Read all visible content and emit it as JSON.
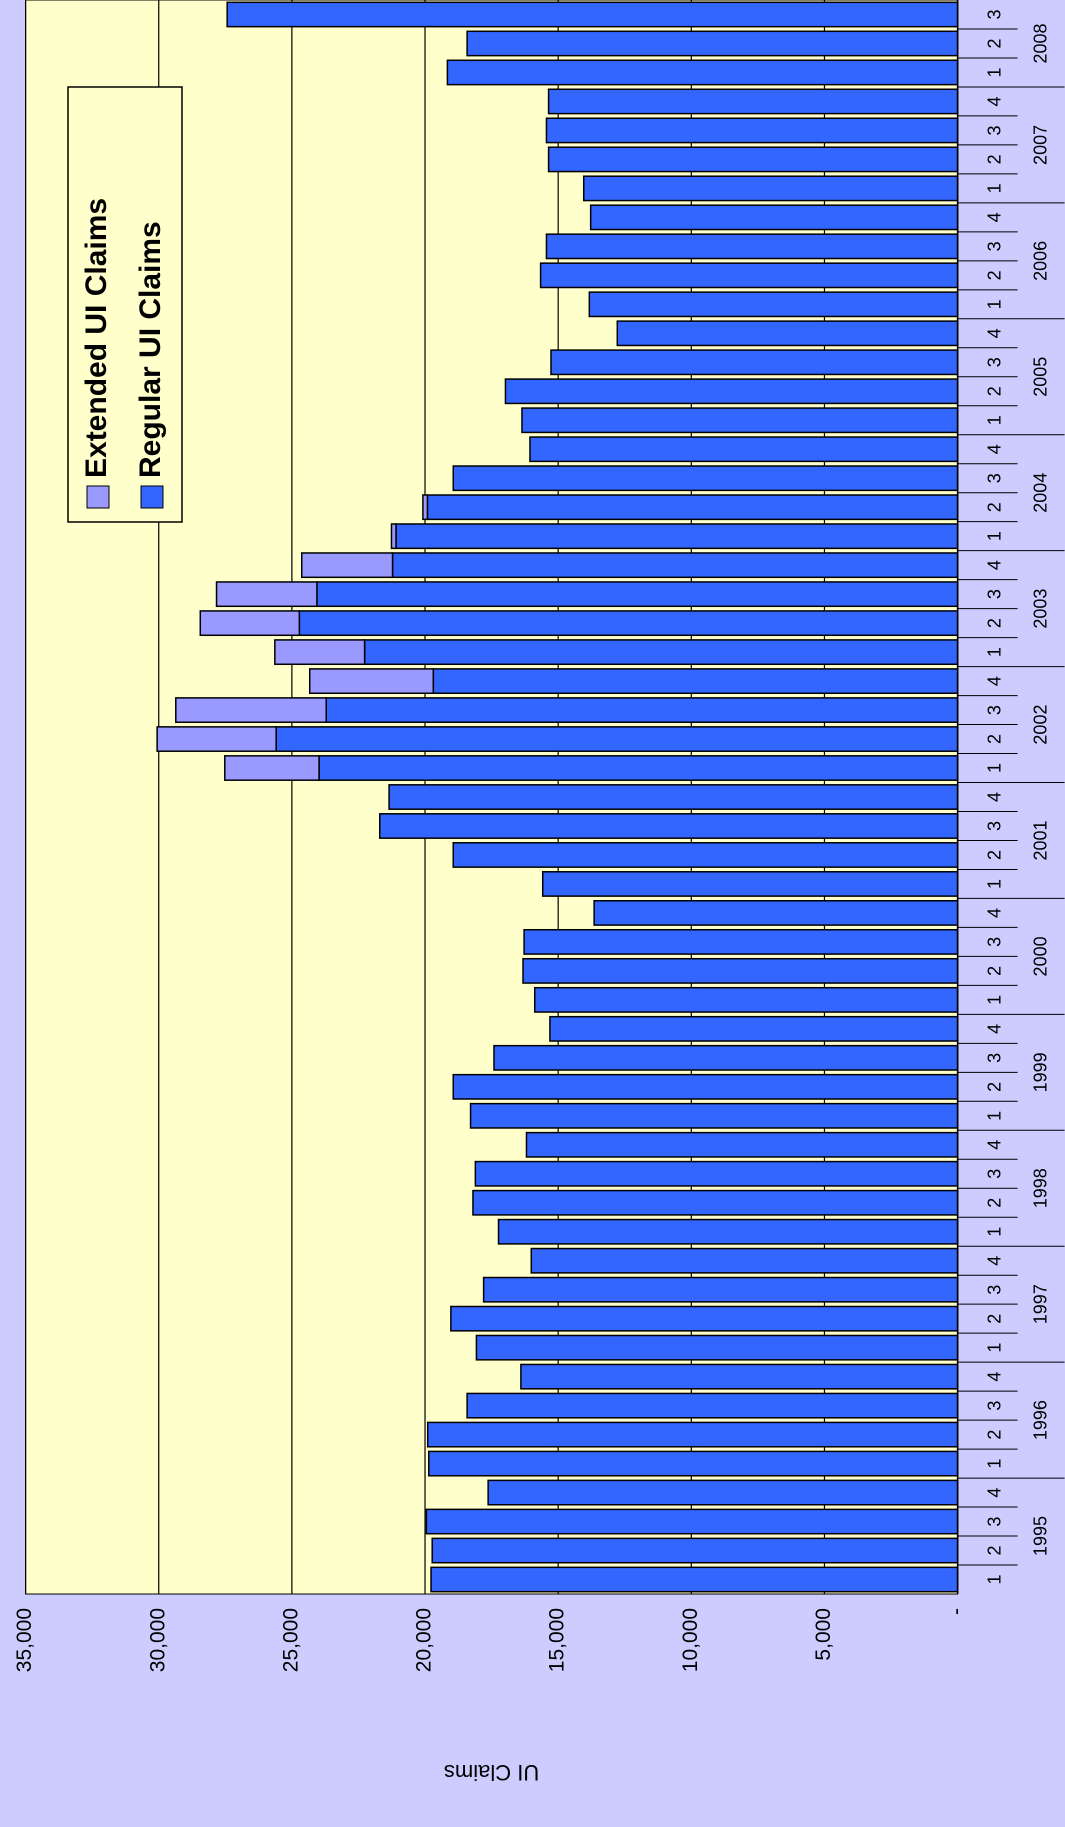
{
  "chart_data": {
    "type": "bar",
    "stacked": true,
    "y_label": "UI Claims",
    "categories": [
      "1",
      "2",
      "3",
      "4",
      "1",
      "2",
      "3",
      "4",
      "1",
      "2",
      "3",
      "4",
      "1",
      "2",
      "3",
      "4",
      "1",
      "2",
      "3",
      "4",
      "1",
      "2",
      "3",
      "4",
      "1",
      "2",
      "3",
      "4",
      "1",
      "2",
      "3",
      "4",
      "1",
      "2",
      "3",
      "4",
      "1",
      "2",
      "3",
      "4",
      "1",
      "2",
      "3",
      "4",
      "1",
      "2",
      "3",
      "4",
      "1",
      "2",
      "3",
      "4",
      "1",
      "2",
      "3"
    ],
    "years": [
      "1995",
      "1996",
      "1997",
      "1998",
      "1999",
      "2000",
      "2001",
      "2002",
      "2003",
      "2004",
      "2005",
      "2006",
      "2007",
      "2008"
    ],
    "series": [
      {
        "name": "Regular UI Claims",
        "color": "#3366ff",
        "values": [
          19775,
          19730,
          19950,
          17630,
          19860,
          19900,
          18420,
          16400,
          18070,
          19030,
          17800,
          16010,
          17240,
          18200,
          18110,
          16190,
          18290,
          18940,
          17410,
          15310,
          15880,
          16320,
          16280,
          13650,
          15580,
          18940,
          21700,
          21350,
          23980,
          25590,
          23710,
          19690,
          22270,
          24720,
          24060,
          21220,
          21090,
          19910,
          18940,
          16060,
          16360,
          16980,
          15270,
          12780,
          13830,
          15660,
          15440,
          13780,
          14040,
          15360,
          15440,
          15360,
          19160,
          18420,
          27430
        ]
      },
      {
        "name": "Extended UI Claims",
        "color": "#9999ff",
        "values": [
          0,
          0,
          0,
          0,
          0,
          0,
          0,
          0,
          0,
          0,
          0,
          0,
          0,
          0,
          0,
          0,
          0,
          0,
          0,
          0,
          0,
          0,
          0,
          0,
          0,
          0,
          0,
          0,
          3540,
          4470,
          5650,
          4640,
          3370,
          3720,
          3770,
          3410,
          170,
          170,
          0,
          0,
          0,
          0,
          0,
          0,
          0,
          0,
          0,
          0,
          0,
          0,
          0,
          0,
          0,
          0,
          0
        ]
      }
    ],
    "ylim": [
      0,
      35000
    ],
    "yticks": [
      {
        "value": 0,
        "label": "-"
      },
      {
        "value": 5000,
        "label": "5,000"
      },
      {
        "value": 10000,
        "label": "10,000"
      },
      {
        "value": 15000,
        "label": "15,000"
      },
      {
        "value": 20000,
        "label": "20,000"
      },
      {
        "value": 25000,
        "label": "25,000"
      },
      {
        "value": 30000,
        "label": "30,000"
      },
      {
        "value": 35000,
        "label": "35,000"
      }
    ],
    "grid": true,
    "legend": "top-right",
    "rotation": -90
  }
}
